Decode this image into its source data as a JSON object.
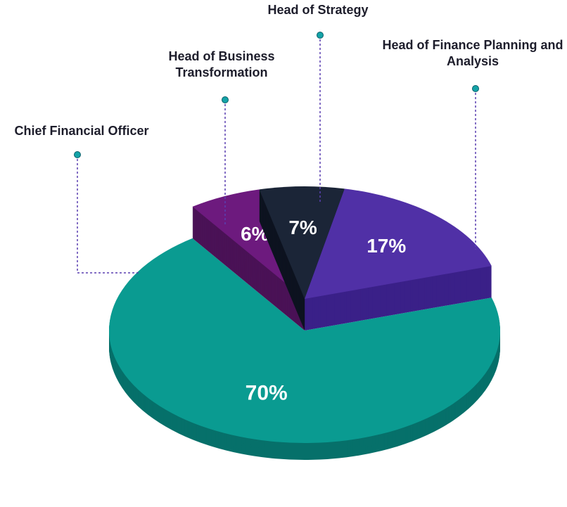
{
  "chart_data": {
    "type": "pie3d",
    "categories": [
      "Chief Financial Officer",
      "Head of Business Transformation",
      "Head of Strategy",
      "Head of Finance Planning and Analysis"
    ],
    "values": [
      70,
      6,
      7,
      17
    ],
    "value_labels": [
      "70%",
      "6%",
      "7%",
      "17%"
    ],
    "colors": [
      "#0a9b91",
      "#6d1a7e",
      "#1b2537",
      "#5030a6"
    ]
  }
}
